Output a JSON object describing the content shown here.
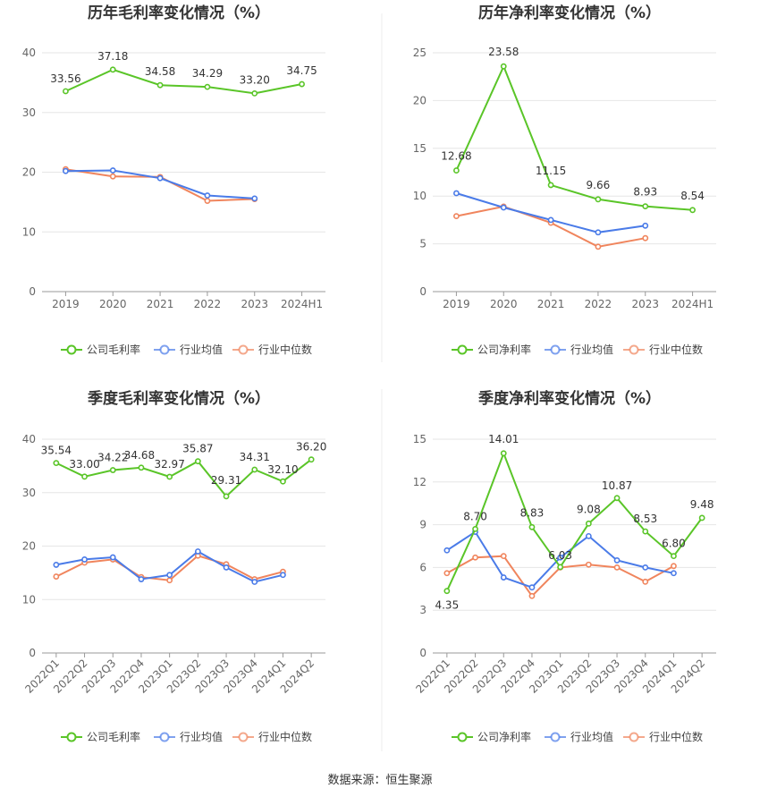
{
  "source_label": "数据来源：恒生聚源",
  "colors": {
    "company": "#5ac528",
    "avg": "#4a7be8",
    "median": "#f0855d"
  },
  "chart_data": [
    {
      "type": "line",
      "title": "历年毛利率变化情况（%）",
      "categories": [
        "2019",
        "2020",
        "2021",
        "2022",
        "2023",
        "2024H1"
      ],
      "ylim": [
        0,
        40
      ],
      "yticks": [
        0,
        10,
        20,
        30,
        40
      ],
      "grid": true,
      "legend_position": "bottom",
      "series": [
        {
          "name": "公司毛利率",
          "color": "#5ac528",
          "labels": true,
          "values": [
            33.56,
            37.18,
            34.58,
            34.29,
            33.2,
            34.75
          ],
          "value_labels": [
            "33.56",
            "37.18",
            "34.58",
            "34.29",
            "33.20",
            "34.75"
          ]
        },
        {
          "name": "行业均值",
          "color": "#4a7be8",
          "labels": false,
          "values": [
            20.2,
            20.3,
            19.0,
            16.1,
            15.6,
            null
          ]
        },
        {
          "name": "行业中位数",
          "color": "#f0855d",
          "labels": false,
          "values": [
            20.5,
            19.3,
            19.2,
            15.2,
            15.5,
            null
          ]
        }
      ]
    },
    {
      "type": "line",
      "title": "历年净利率变化情况（%）",
      "categories": [
        "2019",
        "2020",
        "2021",
        "2022",
        "2023",
        "2024H1"
      ],
      "ylim": [
        0,
        25
      ],
      "yticks": [
        0,
        5,
        10,
        15,
        20,
        25
      ],
      "grid": true,
      "legend_position": "bottom",
      "series": [
        {
          "name": "公司净利率",
          "color": "#5ac528",
          "labels": true,
          "values": [
            12.68,
            23.58,
            11.15,
            9.66,
            8.93,
            8.54
          ],
          "value_labels": [
            "12.68",
            "23.58",
            "11.15",
            "9.66",
            "8.93",
            "8.54"
          ]
        },
        {
          "name": "行业均值",
          "color": "#4a7be8",
          "labels": false,
          "values": [
            10.3,
            8.8,
            7.5,
            6.2,
            6.9,
            null
          ]
        },
        {
          "name": "行业中位数",
          "color": "#f0855d",
          "labels": false,
          "values": [
            7.9,
            8.9,
            7.2,
            4.7,
            5.6,
            null
          ]
        }
      ]
    },
    {
      "type": "line",
      "title": "季度毛利率变化情况（%）",
      "categories": [
        "2022Q1",
        "2022Q2",
        "2022Q3",
        "2022Q4",
        "2023Q1",
        "2023Q2",
        "2023Q3",
        "2023Q4",
        "2024Q1",
        "2024Q2"
      ],
      "ylim": [
        0,
        40
      ],
      "yticks": [
        0,
        10,
        20,
        30,
        40
      ],
      "grid": true,
      "legend_position": "bottom",
      "series": [
        {
          "name": "公司毛利率",
          "color": "#5ac528",
          "labels": true,
          "values": [
            35.54,
            33.0,
            34.22,
            34.68,
            32.97,
            35.87,
            29.31,
            34.31,
            32.1,
            36.2
          ],
          "value_labels": [
            "35.54",
            "33.00",
            "34.22",
            "34.68",
            "32.97",
            "35.87",
            "29.31",
            "34.31",
            "32.10",
            "36.20"
          ]
        },
        {
          "name": "行业均值",
          "color": "#4a7be8",
          "labels": false,
          "values": [
            16.5,
            17.5,
            17.9,
            13.8,
            14.6,
            19.0,
            16.0,
            13.3,
            14.6,
            null
          ]
        },
        {
          "name": "行业中位数",
          "color": "#f0855d",
          "labels": false,
          "values": [
            14.3,
            16.9,
            17.5,
            14.2,
            13.6,
            18.2,
            16.6,
            13.8,
            15.2,
            null
          ]
        }
      ]
    },
    {
      "type": "line",
      "title": "季度净利率变化情况（%）",
      "categories": [
        "2022Q1",
        "2022Q2",
        "2022Q3",
        "2022Q4",
        "2023Q1",
        "2023Q2",
        "2023Q3",
        "2023Q4",
        "2024Q1",
        "2024Q2"
      ],
      "ylim": [
        0,
        15
      ],
      "yticks": [
        0,
        3,
        6,
        9,
        12,
        15
      ],
      "grid": true,
      "legend_position": "bottom",
      "series": [
        {
          "name": "公司净利率",
          "color": "#5ac528",
          "labels": true,
          "values": [
            4.35,
            8.7,
            14.01,
            8.83,
            6.03,
            9.08,
            10.87,
            8.53,
            6.8,
            9.48
          ],
          "value_labels": [
            "4.35",
            "8.70",
            "14.01",
            "8.83",
            "6.03",
            "9.08",
            "10.87",
            "8.53",
            "6.80",
            "9.48"
          ]
        },
        {
          "name": "行业均值",
          "color": "#4a7be8",
          "labels": false,
          "values": [
            7.2,
            8.5,
            5.3,
            4.6,
            6.7,
            8.2,
            6.5,
            6.0,
            5.6,
            null
          ]
        },
        {
          "name": "行业中位数",
          "color": "#f0855d",
          "labels": false,
          "values": [
            5.6,
            6.7,
            6.8,
            4.0,
            6.0,
            6.2,
            6.0,
            5.0,
            6.1,
            null
          ]
        }
      ]
    }
  ]
}
